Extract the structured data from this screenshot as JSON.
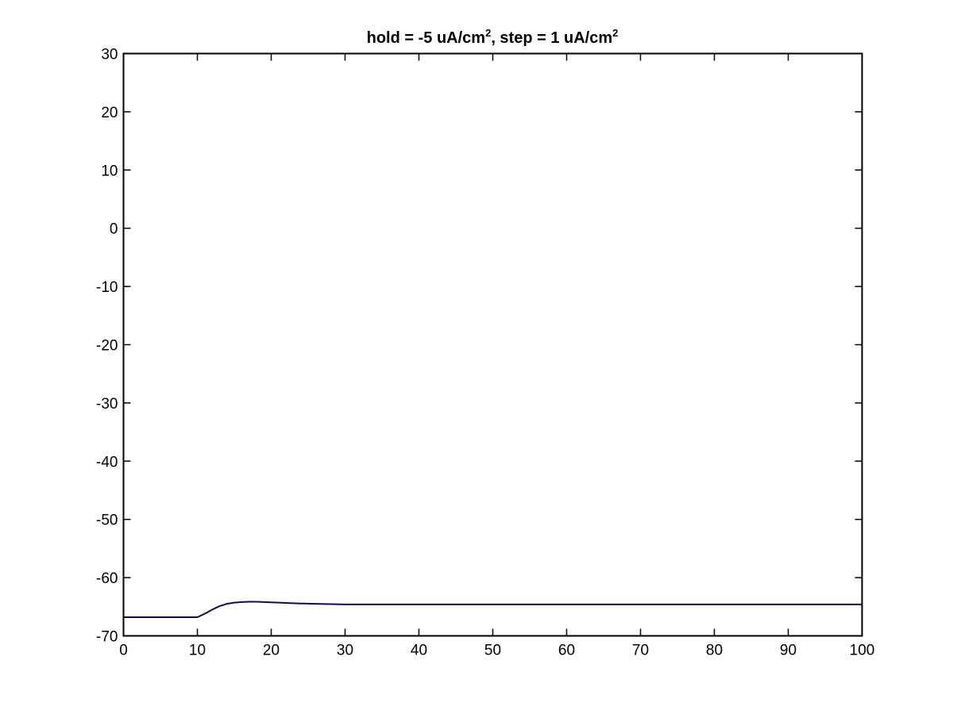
{
  "chart_data": {
    "type": "line",
    "title": {
      "part1": "hold = -5 uA/cm",
      "sup1": "2",
      "part2": ", step = 1 uA/cm",
      "sup2": "2"
    },
    "xlabel": "",
    "ylabel": "",
    "xlim": [
      0,
      100
    ],
    "ylim": [
      -70,
      30
    ],
    "xticks": [
      "0",
      "10",
      "20",
      "30",
      "40",
      "50",
      "60",
      "70",
      "80",
      "90",
      "100"
    ],
    "yticks": [
      "30",
      "20",
      "10",
      "0",
      "-10",
      "-20",
      "-30",
      "-40",
      "-50",
      "-60",
      "-70"
    ],
    "grid": false,
    "line_color": "#0b0b5e",
    "series": [
      {
        "x": [
          0,
          5,
          10,
          11,
          12,
          13,
          14,
          15,
          16,
          17,
          18,
          19,
          20,
          22,
          24,
          26,
          28,
          30,
          35,
          40,
          50,
          60,
          70,
          80,
          90,
          100
        ],
        "y": [
          -66.8,
          -66.8,
          -66.8,
          -66.2,
          -65.5,
          -64.9,
          -64.5,
          -64.3,
          -64.2,
          -64.15,
          -64.15,
          -64.2,
          -64.25,
          -64.35,
          -64.45,
          -64.5,
          -64.55,
          -64.6,
          -64.6,
          -64.6,
          -64.6,
          -64.6,
          -64.6,
          -64.6,
          -64.6,
          -64.6
        ]
      }
    ]
  }
}
